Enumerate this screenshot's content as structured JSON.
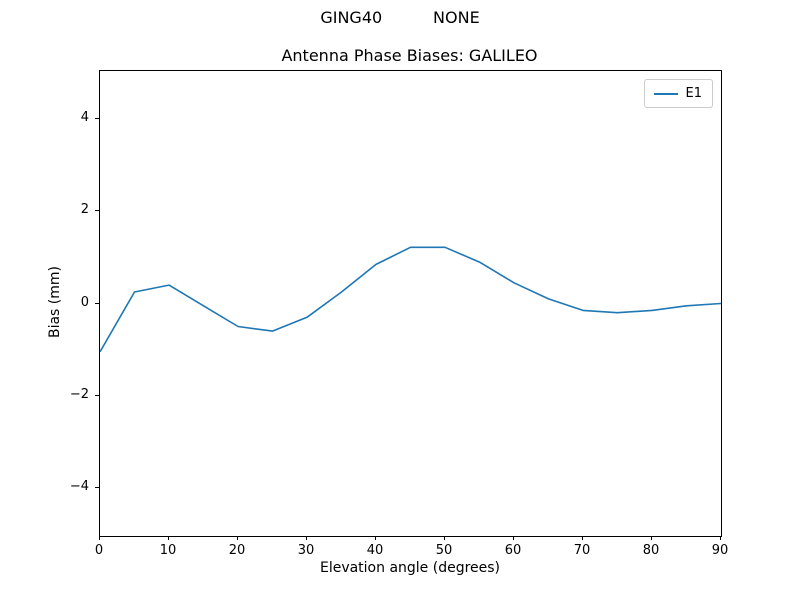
{
  "figure": {
    "suptitle": "GING40          NONE",
    "title": "Antenna Phase Biases: GALILEO"
  },
  "chart_data": {
    "type": "line",
    "title": "Antenna Phase Biases: GALILEO",
    "suptitle": "GING40          NONE",
    "xlabel": "Elevation angle (degrees)",
    "ylabel": "Bias (mm)",
    "xlim": [
      0,
      90
    ],
    "ylim": [
      -5.05,
      5.05
    ],
    "xticks": [
      0,
      10,
      20,
      30,
      40,
      50,
      60,
      70,
      80,
      90
    ],
    "xticklabels": [
      "0",
      "10",
      "20",
      "30",
      "40",
      "50",
      "60",
      "70",
      "80",
      "90"
    ],
    "yticks": [
      -4,
      -2,
      0,
      2,
      4
    ],
    "yticklabels": [
      "−4",
      "−2",
      "0",
      "2",
      "4"
    ],
    "grid": false,
    "legend": {
      "position": "upper right",
      "entries": [
        "E1"
      ]
    },
    "series": [
      {
        "name": "E1",
        "color": "#1f77b4",
        "x": [
          0,
          5,
          10,
          15,
          20,
          25,
          30,
          35,
          40,
          45,
          50,
          55,
          60,
          65,
          70,
          75,
          80,
          85,
          90
        ],
        "y": [
          -1.05,
          0.25,
          0.4,
          -0.05,
          -0.5,
          -0.6,
          -0.3,
          0.25,
          0.85,
          1.22,
          1.22,
          0.9,
          0.45,
          0.1,
          -0.15,
          -0.2,
          -0.15,
          -0.05,
          0.0
        ]
      }
    ]
  }
}
